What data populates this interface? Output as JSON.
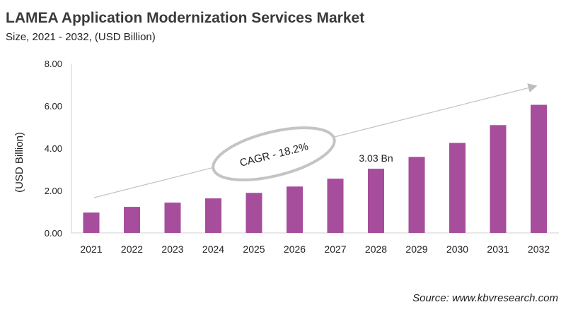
{
  "title": "LAMEA Application Modernization Services Market",
  "subtitle": "Size, 2021 - 2032, (USD Billion)",
  "source": "Source: www.kbvresearch.com",
  "chart_data": {
    "type": "bar",
    "ylabel": "(USD Billion)",
    "ylim": [
      0,
      8
    ],
    "yticks": [
      "0.00",
      "2.00",
      "4.00",
      "6.00",
      "8.00"
    ],
    "categories": [
      "2021",
      "2022",
      "2023",
      "2024",
      "2025",
      "2026",
      "2027",
      "2028",
      "2029",
      "2030",
      "2031",
      "2032"
    ],
    "values": [
      0.96,
      1.23,
      1.43,
      1.63,
      1.89,
      2.19,
      2.56,
      3.03,
      3.59,
      4.25,
      5.09,
      6.05
    ],
    "data_labels": [
      {
        "category": "2028",
        "text": "3.03 Bn"
      }
    ],
    "annotation": "CAGR - 18.2%",
    "bar_color": "#a64d9c",
    "grid": false
  }
}
